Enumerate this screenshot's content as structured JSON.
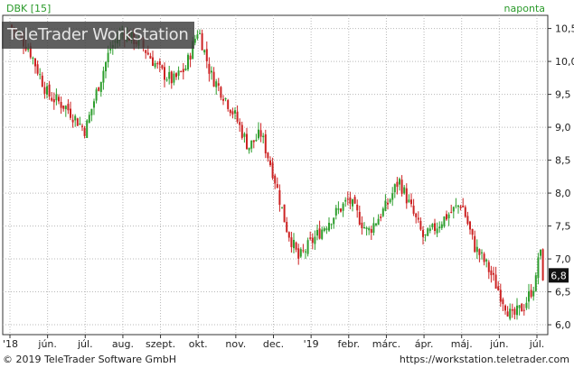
{
  "header": {
    "symbol_label": "DBK [15]",
    "period_label": "naponta",
    "watermark": "TeleTrader WorkStation"
  },
  "footer": {
    "copyright": "© 2019 TeleTrader Software GmbH",
    "url": "https://workstation.teletrader.com"
  },
  "colors": {
    "up": "#2e9e2e",
    "down": "#cc2222",
    "grid": "#b8b8b8",
    "axis": "#333333",
    "label_green": "#2a9a2a",
    "last_price_bg": "#111111"
  },
  "chart_data": {
    "type": "candlestick",
    "title": "DBK [15]",
    "interval": "naponta",
    "ylim": [
      5.85,
      10.7
    ],
    "y_ticks": [
      "6,0",
      "6,5",
      "7,0",
      "7,5",
      "8,0",
      "8,5",
      "9,0",
      "9,5",
      "10,0",
      "10,5"
    ],
    "y_tick_values": [
      6.0,
      6.5,
      7.0,
      7.5,
      8.0,
      8.5,
      9.0,
      9.5,
      10.0,
      10.5
    ],
    "x_ticks": [
      "'18",
      "jún.",
      "júl.",
      "aug.",
      "szept.",
      "okt.",
      "nov.",
      "dec.",
      "'19",
      "febr.",
      "márc.",
      "ápr.",
      "máj.",
      "jún.",
      "júl."
    ],
    "last_price_label": "6,8",
    "last_price": 6.75,
    "trend_points": [
      {
        "month": "'18",
        "close": 10.55
      },
      {
        "month": "'18",
        "close": 10.2
      },
      {
        "month": "jún.",
        "close": 9.5
      },
      {
        "month": "jún.",
        "close": 9.3
      },
      {
        "month": "júl.",
        "close": 8.95
      },
      {
        "month": "júl.",
        "close": 9.6
      },
      {
        "month": "júl.",
        "close": 10.2
      },
      {
        "month": "aug.",
        "close": 10.45
      },
      {
        "month": "aug.",
        "close": 10.25
      },
      {
        "month": "szept.",
        "close": 9.85
      },
      {
        "month": "szept.",
        "close": 9.7
      },
      {
        "month": "szept.",
        "close": 9.9
      },
      {
        "month": "okt.",
        "close": 10.5
      },
      {
        "month": "okt.",
        "close": 9.8
      },
      {
        "month": "okt.",
        "close": 9.5
      },
      {
        "month": "nov.",
        "close": 9.15
      },
      {
        "month": "nov.",
        "close": 8.7
      },
      {
        "month": "nov.",
        "close": 8.9
      },
      {
        "month": "dec.",
        "close": 8.3
      },
      {
        "month": "dec.",
        "close": 7.5
      },
      {
        "month": "dec.",
        "close": 7.0
      },
      {
        "month": "'19",
        "close": 7.25
      },
      {
        "month": "'19",
        "close": 7.6
      },
      {
        "month": "febr.",
        "close": 7.9
      },
      {
        "month": "febr.",
        "close": 7.4
      },
      {
        "month": "márc.",
        "close": 7.8
      },
      {
        "month": "márc.",
        "close": 8.2
      },
      {
        "month": "márc.",
        "close": 7.75
      },
      {
        "month": "ápr.",
        "close": 7.3
      },
      {
        "month": "ápr.",
        "close": 7.6
      },
      {
        "month": "máj.",
        "close": 7.85
      },
      {
        "month": "máj.",
        "close": 7.2
      },
      {
        "month": "máj.",
        "close": 6.9
      },
      {
        "month": "jún.",
        "close": 6.5
      },
      {
        "month": "jún.",
        "close": 6.1
      },
      {
        "month": "jún.",
        "close": 6.3
      },
      {
        "month": "júl.",
        "close": 6.7
      },
      {
        "month": "júl.",
        "close": 7.35
      },
      {
        "month": "júl.",
        "close": 6.75
      }
    ]
  }
}
